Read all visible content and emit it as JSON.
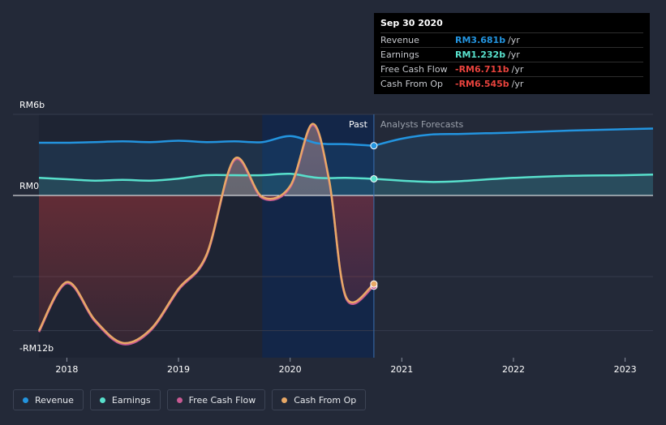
{
  "chart_data": {
    "type": "line",
    "currency_prefix": "RM",
    "y_labels": {
      "top": "RM6b",
      "zero": "RM0",
      "bottom": "-RM12b"
    },
    "ylim": [
      -12,
      6
    ],
    "xlim": [
      2017.75,
      2023.25
    ],
    "x_ticks": [
      {
        "value": 2018,
        "label": "2018"
      },
      {
        "value": 2019,
        "label": "2019"
      },
      {
        "value": 2020,
        "label": "2020"
      },
      {
        "value": 2021,
        "label": "2021"
      },
      {
        "value": 2022,
        "label": "2022"
      },
      {
        "value": 2023,
        "label": "2023"
      }
    ],
    "today": 2020.75,
    "past_shade_start": 2019.75,
    "past_label": "Past",
    "forecast_label": "Analysts Forecasts",
    "series": [
      {
        "key": "revenue",
        "name": "Revenue",
        "color": "#2394df",
        "area": true,
        "past": [
          [
            2017.75,
            3.9
          ],
          [
            2018.0,
            3.9
          ],
          [
            2018.25,
            3.95
          ],
          [
            2018.5,
            4.0
          ],
          [
            2018.75,
            3.95
          ],
          [
            2019.0,
            4.05
          ],
          [
            2019.25,
            3.95
          ],
          [
            2019.5,
            4.0
          ],
          [
            2019.75,
            3.95
          ],
          [
            2020.0,
            4.4
          ],
          [
            2020.25,
            3.85
          ],
          [
            2020.5,
            3.8
          ],
          [
            2020.75,
            3.68
          ]
        ],
        "forecast": [
          [
            2020.75,
            3.68
          ],
          [
            2021.0,
            4.2
          ],
          [
            2021.25,
            4.5
          ],
          [
            2021.5,
            4.55
          ],
          [
            2021.75,
            4.6
          ],
          [
            2022.0,
            4.65
          ],
          [
            2022.5,
            4.8
          ],
          [
            2023.0,
            4.9
          ],
          [
            2023.25,
            4.95
          ]
        ],
        "marker": [
          2020.75,
          3.681
        ]
      },
      {
        "key": "earnings",
        "name": "Earnings",
        "color": "#58e0cc",
        "area": true,
        "past": [
          [
            2017.75,
            1.3
          ],
          [
            2018.0,
            1.2
          ],
          [
            2018.25,
            1.1
          ],
          [
            2018.5,
            1.15
          ],
          [
            2018.75,
            1.1
          ],
          [
            2019.0,
            1.25
          ],
          [
            2019.25,
            1.5
          ],
          [
            2019.5,
            1.5
          ],
          [
            2019.75,
            1.5
          ],
          [
            2020.0,
            1.6
          ],
          [
            2020.25,
            1.3
          ],
          [
            2020.5,
            1.3
          ],
          [
            2020.75,
            1.23
          ]
        ],
        "forecast": [
          [
            2020.75,
            1.23
          ],
          [
            2021.0,
            1.1
          ],
          [
            2021.25,
            1.0
          ],
          [
            2021.5,
            1.05
          ],
          [
            2022.0,
            1.3
          ],
          [
            2022.5,
            1.45
          ],
          [
            2023.0,
            1.5
          ],
          [
            2023.25,
            1.55
          ]
        ],
        "marker": [
          2020.75,
          1.232
        ]
      },
      {
        "key": "fcf",
        "name": "Free Cash Flow",
        "color": "#c85a93",
        "area": false,
        "past": [
          [
            2017.75,
            -10.1
          ],
          [
            2018.0,
            -6.5
          ],
          [
            2018.25,
            -9.3
          ],
          [
            2018.5,
            -11.0
          ],
          [
            2018.75,
            -10.0
          ],
          [
            2019.0,
            -7.0
          ],
          [
            2019.25,
            -4.5
          ],
          [
            2019.5,
            2.6
          ],
          [
            2019.75,
            -0.2
          ],
          [
            2020.0,
            0.6
          ],
          [
            2020.2,
            5.2
          ],
          [
            2020.35,
            1.0
          ],
          [
            2020.5,
            -7.6
          ],
          [
            2020.75,
            -6.711
          ]
        ],
        "forecast": [],
        "marker": [
          2020.75,
          -6.711
        ]
      },
      {
        "key": "cfo",
        "name": "Cash From Op",
        "color": "#e8a866",
        "area": false,
        "past": [
          [
            2017.75,
            -10.0
          ],
          [
            2018.0,
            -6.4
          ],
          [
            2018.25,
            -9.2
          ],
          [
            2018.5,
            -10.9
          ],
          [
            2018.75,
            -9.9
          ],
          [
            2019.0,
            -6.9
          ],
          [
            2019.25,
            -4.4
          ],
          [
            2019.5,
            2.7
          ],
          [
            2019.75,
            -0.1
          ],
          [
            2020.0,
            0.7
          ],
          [
            2020.2,
            5.3
          ],
          [
            2020.35,
            1.1
          ],
          [
            2020.5,
            -7.5
          ],
          [
            2020.75,
            -6.545
          ]
        ],
        "forecast": [],
        "marker": [
          2020.75,
          -6.545
        ]
      }
    ]
  },
  "tooltip": {
    "date": "Sep 30 2020",
    "rows": [
      {
        "name": "Revenue",
        "value": "RM3.681b",
        "unit": "/yr",
        "color": "#2394df"
      },
      {
        "name": "Earnings",
        "value": "RM1.232b",
        "unit": "/yr",
        "color": "#58e0cc"
      },
      {
        "name": "Free Cash Flow",
        "value": "-RM6.711b",
        "unit": "/yr",
        "color": "#e8433d"
      },
      {
        "name": "Cash From Op",
        "value": "-RM6.545b",
        "unit": "/yr",
        "color": "#e8433d"
      }
    ]
  },
  "legend": [
    {
      "name": "Revenue",
      "color": "#2394df"
    },
    {
      "name": "Earnings",
      "color": "#58e0cc"
    },
    {
      "name": "Free Cash Flow",
      "color": "#c85a93"
    },
    {
      "name": "Cash From Op",
      "color": "#e8a866"
    }
  ]
}
